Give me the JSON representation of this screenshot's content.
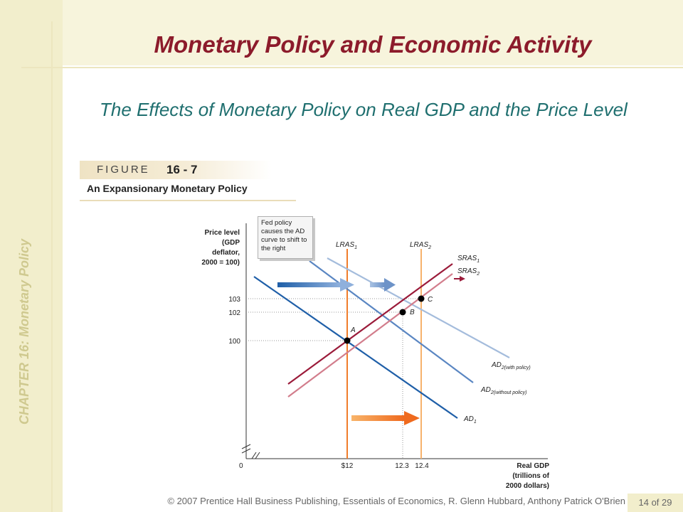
{
  "slide": {
    "title": "Monetary Policy and Economic Activity",
    "subtitle": "The Effects of Monetary Policy on Real GDP and the Price Level",
    "chapter": "CHAPTER 16: Monetary Policy",
    "footer": "© 2007 Prentice Hall Business Publishing, Essentials of Economics, R. Glenn Hubbard, Anthony Patrick O'Brien",
    "page": "14 of 29"
  },
  "figure": {
    "label": "FIGURE",
    "number": "16 - 7",
    "caption": "An Expansionary Monetary Policy",
    "callout": "Fed policy causes the AD curve to shift to the right",
    "ylabel": [
      "Price level",
      "(GDP",
      "deflator,",
      "2000 = 100)"
    ],
    "xlabel": [
      "Real GDP",
      "(trillions of",
      "2000 dollars)"
    ],
    "origin": "0",
    "y_ticks": [
      "103",
      "102",
      "100"
    ],
    "x_ticks": [
      "$12",
      "12.3",
      "12.4"
    ],
    "points": [
      "A",
      "B",
      "C"
    ]
  },
  "curves": {
    "lras1": {
      "name": "LRAS",
      "sub": "1"
    },
    "lras2": {
      "name": "LRAS",
      "sub": "2"
    },
    "sras1": {
      "name": "SRAS",
      "sub": "1"
    },
    "sras2": {
      "name": "SRAS",
      "sub": "2"
    },
    "ad1": {
      "name": "AD",
      "sub": "1"
    },
    "ad2_with": {
      "name": "AD",
      "sub": "2(with policy)"
    },
    "ad2_without": {
      "name": "AD",
      "sub": "2(without policy)"
    }
  },
  "colors": {
    "title": "#8c1b2b",
    "subtitle": "#1f6f6f",
    "ad1": "#1f5fa8",
    "ad2_without": "#5a86c2",
    "ad2_with": "#a4bcdc",
    "sras1": "#9b1b3a",
    "sras2": "#d27d8c",
    "lras1": "#f07d2a",
    "lras2": "#f7b26c"
  }
}
